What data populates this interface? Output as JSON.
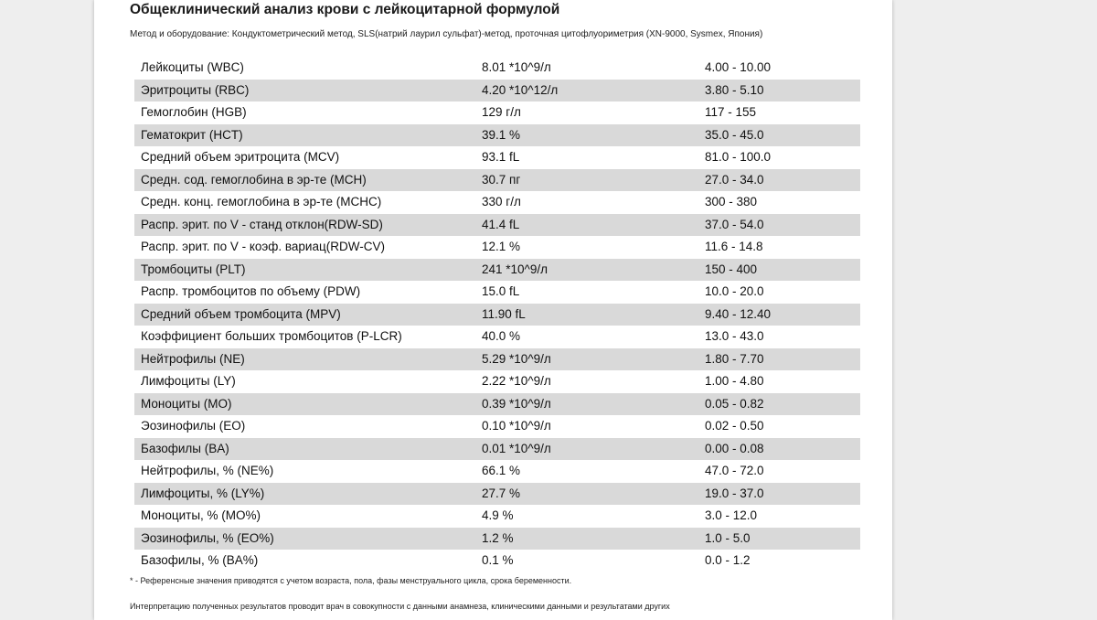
{
  "document": {
    "title": "Общеклинический анализ крови с лейкоцитарной формулой",
    "method": "Метод и оборудование:  Кондуктометрический метод, SLS(натрий лаурил сульфат)-метод, проточная цитофлуориметрия (XN-9000, Sysmex, Япония)",
    "footnote": "* - Референсные значения приводятся с учетом возраста, пола, фазы менструального цикла, срока беременности.",
    "interpretation": "Интерпретацию полученных результатов проводит врач в совокупности с данными анамнеза, клиническими данными и результатами других"
  },
  "results": [
    {
      "name": "Лейкоциты (WBC)",
      "value": "8.01 *10^9/л",
      "ref": "4.00 - 10.00"
    },
    {
      "name": "Эритроциты (RBC)",
      "value": "4.20 *10^12/л",
      "ref": "3.80 - 5.10"
    },
    {
      "name": "Гемоглобин (HGB)",
      "value": "129 г/л",
      "ref": "117 - 155"
    },
    {
      "name": "Гематокрит (HCT)",
      "value": "39.1 %",
      "ref": "35.0 - 45.0"
    },
    {
      "name": "Средний объем эритроцита (MCV)",
      "value": "93.1 fL",
      "ref": "81.0 - 100.0"
    },
    {
      "name": "Средн. сод. гемоглобина в эр-те (MCH)",
      "value": "30.7 пг",
      "ref": "27.0 - 34.0"
    },
    {
      "name": "Средн. конц. гемоглобина в эр-те (MCHC)",
      "value": "330 г/л",
      "ref": "300 - 380"
    },
    {
      "name": "Распр. эрит. по V - станд отклон(RDW-SD)",
      "value": "41.4 fL",
      "ref": "37.0 - 54.0"
    },
    {
      "name": "Распр. эрит. по V - коэф. вариац(RDW-CV)",
      "value": "12.1 %",
      "ref": "11.6 - 14.8"
    },
    {
      "name": "Тромбоциты (PLT)",
      "value": "241 *10^9/л",
      "ref": "150 - 400"
    },
    {
      "name": "Распр. тромбоцитов по объему (PDW)",
      "value": "15.0 fL",
      "ref": "10.0 - 20.0"
    },
    {
      "name": "Средний объем тромбоцита (MPV)",
      "value": "11.90 fL",
      "ref": "9.40 - 12.40"
    },
    {
      "name": "Коэффициент больших тромбоцитов (P-LCR)",
      "value": "40.0 %",
      "ref": "13.0 - 43.0"
    },
    {
      "name": "Нейтрофилы (NE)",
      "value": "5.29 *10^9/л",
      "ref": "1.80 - 7.70"
    },
    {
      "name": "Лимфоциты (LY)",
      "value": "2.22 *10^9/л",
      "ref": "1.00 - 4.80"
    },
    {
      "name": "Моноциты (MO)",
      "value": "0.39 *10^9/л",
      "ref": "0.05 - 0.82"
    },
    {
      "name": "Эозинофилы (EO)",
      "value": "0.10 *10^9/л",
      "ref": "0.02 - 0.50"
    },
    {
      "name": "Базофилы (BA)",
      "value": "0.01 *10^9/л",
      "ref": "0.00 - 0.08"
    },
    {
      "name": "Нейтрофилы, % (NE%)",
      "value": "66.1 %",
      "ref": "47.0 - 72.0"
    },
    {
      "name": "Лимфоциты, % (LY%)",
      "value": "27.7 %",
      "ref": "19.0 - 37.0"
    },
    {
      "name": "Моноциты, % (MO%)",
      "value": "4.9 %",
      "ref": "3.0 - 12.0"
    },
    {
      "name": "Эозинофилы, % (EO%)",
      "value": "1.2 %",
      "ref": "1.0 - 5.0"
    },
    {
      "name": "Базофилы, % (BA%)",
      "value": "0.1 %",
      "ref": "0.0 - 1.2"
    }
  ]
}
